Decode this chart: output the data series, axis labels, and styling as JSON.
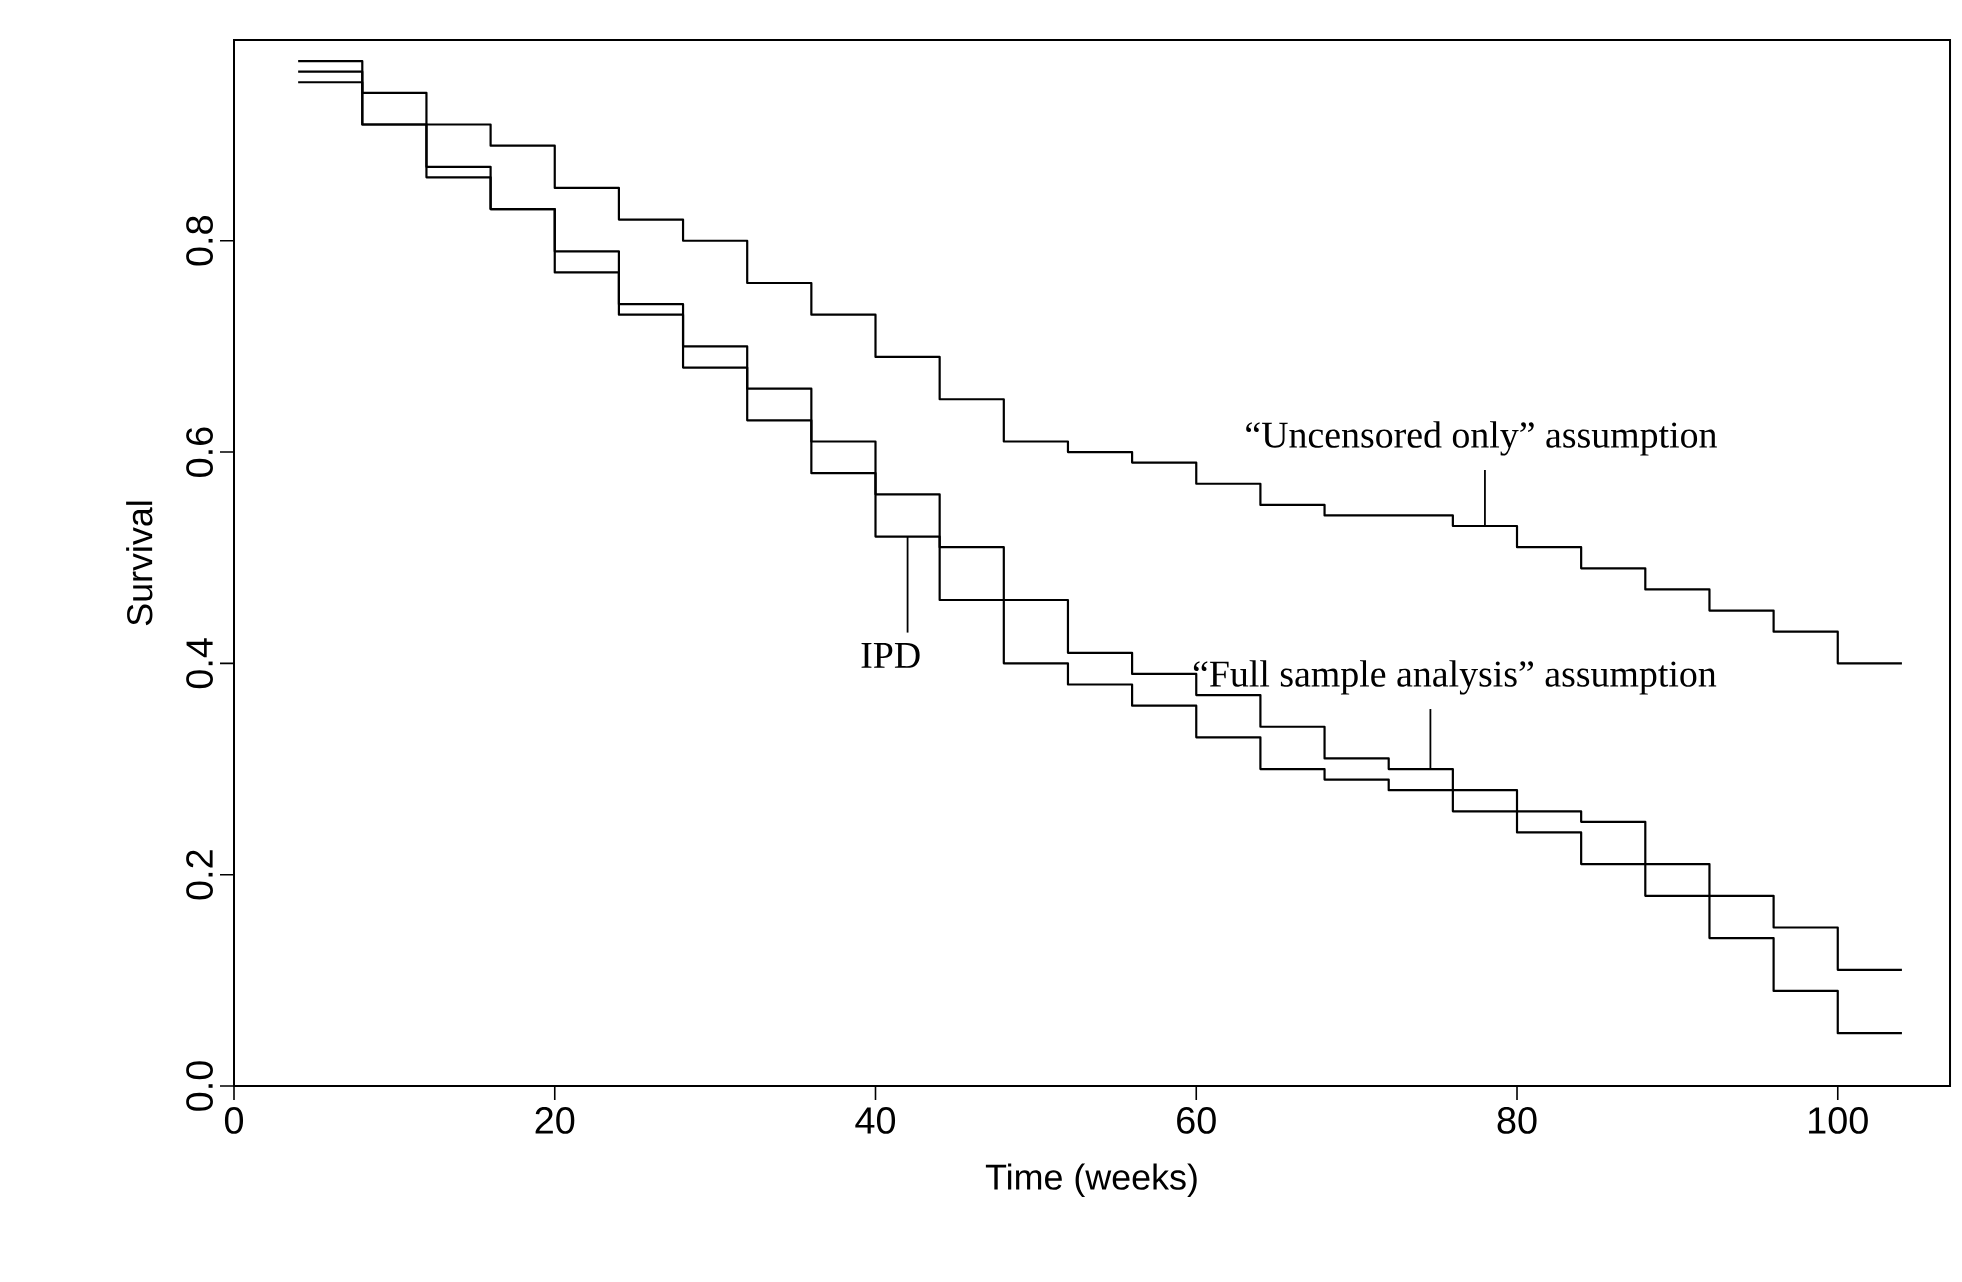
{
  "chart_data": {
    "type": "step",
    "xlabel": "Time (weeks)",
    "ylabel": "Survival",
    "x": [
      4,
      8,
      12,
      16,
      20,
      24,
      28,
      32,
      36,
      40,
      44,
      48,
      52,
      56,
      60,
      64,
      68,
      72,
      76,
      80,
      84,
      88,
      92,
      96,
      100,
      104
    ],
    "series": [
      {
        "color": "#000000",
        "values": [
          0.97,
          0.94,
          0.91,
          0.89,
          0.85,
          0.82,
          0.8,
          0.76,
          0.73,
          0.69,
          0.65,
          0.61,
          0.6,
          0.59,
          0.57,
          0.55,
          0.54,
          0.54,
          0.53,
          0.51,
          0.49,
          0.47,
          0.45,
          0.43,
          0.4,
          0.4
        ]
      },
      {
        "color": "#000000",
        "values": [
          0.96,
          0.91,
          0.87,
          0.83,
          0.79,
          0.74,
          0.7,
          0.66,
          0.61,
          0.56,
          0.51,
          0.46,
          0.41,
          0.39,
          0.37,
          0.34,
          0.31,
          0.3,
          0.28,
          0.26,
          0.25,
          0.21,
          0.18,
          0.15,
          0.11,
          0.11
        ]
      },
      {
        "color": "#000000",
        "values": [
          0.95,
          0.91,
          0.86,
          0.83,
          0.77,
          0.73,
          0.68,
          0.63,
          0.58,
          0.52,
          0.46,
          0.4,
          0.38,
          0.36,
          0.33,
          0.3,
          0.29,
          0.28,
          0.26,
          0.24,
          0.21,
          0.18,
          0.14,
          0.09,
          0.05,
          0.05
        ]
      }
    ],
    "xlim": [
      0,
      107
    ],
    "ylim": [
      0,
      0.99
    ],
    "xticks": [
      0,
      20,
      40,
      60,
      80,
      100
    ],
    "yticks": [
      {
        "value": 0,
        "label": "0.0"
      },
      {
        "value": 0.2,
        "label": "0.2"
      },
      {
        "value": 0.4,
        "label": "0.4"
      },
      {
        "value": 0.6,
        "label": "0.6"
      },
      {
        "value": 0.8,
        "label": "0.8"
      }
    ],
    "annotations": [
      {
        "text": "“Uncensored only” assumption",
        "x": 78,
        "y": 0.53
      },
      {
        "text": "“Full sample analysis” assumption",
        "x": 74.6,
        "y": 0.3
      },
      {
        "text": "IPD",
        "x": 42,
        "y": 0.52
      }
    ],
    "marker": "none",
    "line_style": "solid"
  }
}
